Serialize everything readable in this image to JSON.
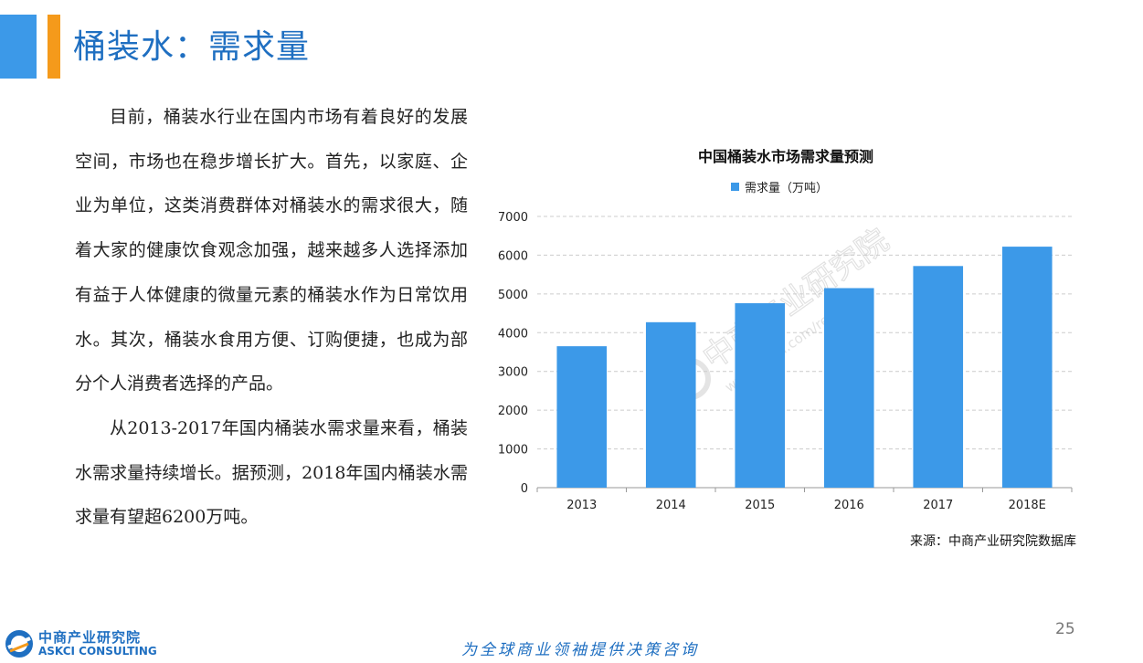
{
  "header": {
    "title": "桶装水：需求量",
    "accent_colors": [
      "#3c99e8",
      "#f59a1b"
    ]
  },
  "body": {
    "paragraphs": [
      "目前，桶装水行业在国内市场有着良好的发展空间，市场也在稳步增长扩大。首先，以家庭、企业为单位，这类消费群体对桶装水的需求很大，随着大家的健康饮食观念加强，越来越多人选择添加有益于人体健康的微量元素的桶装水作为日常饮用水。其次，桶装水食用方便、订购便捷，也成为部分个人消费者选择的产品。",
      "从2013-2017年国内桶装水需求量来看，桶装水需求量持续增长。据预测，2018年国内桶装水需求量有望超6200万吨。"
    ]
  },
  "chart_data": {
    "type": "bar",
    "title": "中国桶装水市场需求量预测",
    "categories": [
      "2013",
      "2014",
      "2015",
      "2016",
      "2017",
      "2018E"
    ],
    "series": [
      {
        "name": "需求量（万吨）",
        "values": [
          3650,
          4270,
          4760,
          5150,
          5720,
          6220
        ],
        "color": "#3c99e8"
      }
    ],
    "yticks": [
      "0",
      "1000",
      "2000",
      "3000",
      "4000",
      "5000",
      "6000",
      "7000"
    ],
    "ylim": [
      0,
      7000
    ],
    "grid": true,
    "legend_position": "top"
  },
  "source": "来源：中商产业研究院数据库",
  "watermark": {
    "text_cn": "中商产业研究院",
    "text_url": "www.askci.com/reports/"
  },
  "footer": {
    "page_number": "25",
    "slogan": "为全球商业领袖提供决策咨询",
    "logo_cn": "中商产业研究院",
    "logo_en": "ASKCI CONSULTING"
  }
}
